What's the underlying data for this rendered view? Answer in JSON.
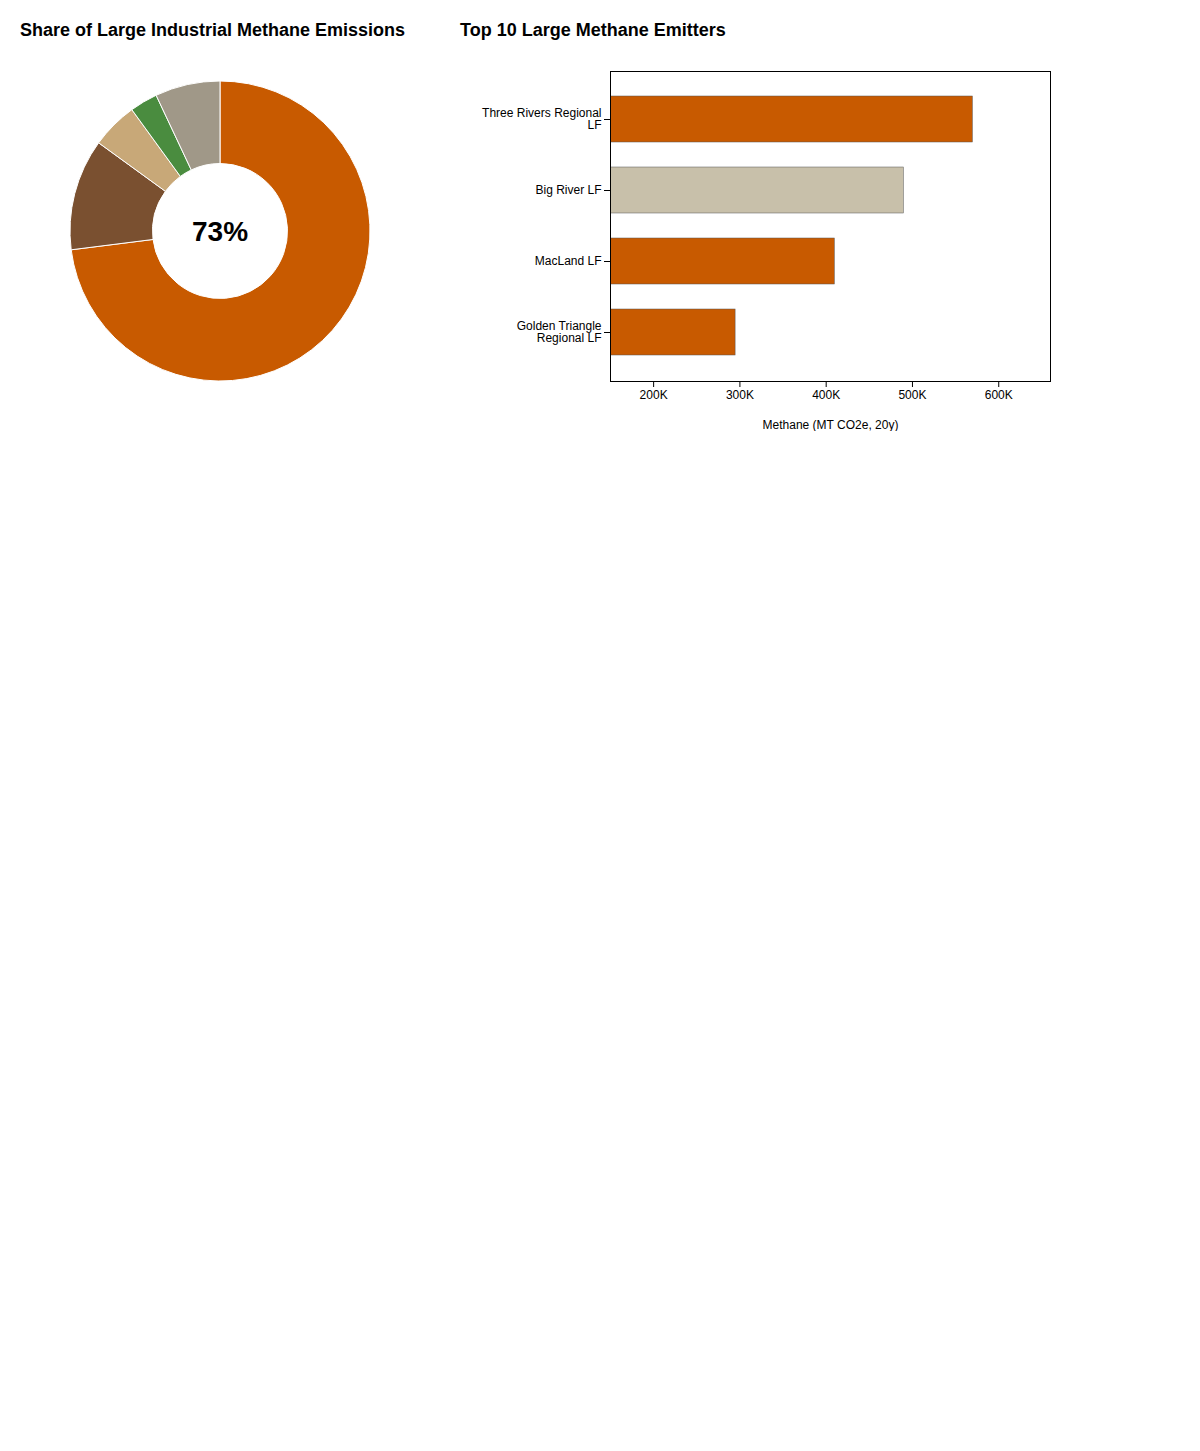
{
  "chart_data": [
    {
      "type": "pie",
      "title": "Share of Large Industrial Methane Emissions",
      "categories": [
        null,
        null,
        null,
        null,
        null
      ],
      "values": [
        73,
        12,
        5,
        3,
        7
      ],
      "colors": [
        "#c85a00",
        "#7a5030",
        "#c8a878",
        "#4a8c3f",
        "#a09888"
      ],
      "annotations": [
        "73%"
      ]
    },
    {
      "type": "bar",
      "title": "Top 10 Large Methane Emitters",
      "orientation": "horizontal",
      "categories": [
        "Three Rivers Regional\nLF",
        "Big River LF",
        "MacLand LF",
        "Golden Triangle\nRegional LF"
      ],
      "values": [
        570000,
        490000,
        410000,
        295000
      ],
      "colors": [
        "#c85a00",
        "#c8c0aa",
        "#c85a00",
        "#c85a00"
      ],
      "xlabel": "Methane (MT CO2e, 20y)",
      "xlim": [
        150000,
        660000
      ],
      "xticks": [
        {
          "value": 200000,
          "label": "200K"
        },
        {
          "value": 300000,
          "label": "300K"
        },
        {
          "value": 400000,
          "label": "400K"
        },
        {
          "value": 500000,
          "label": "500K"
        },
        {
          "value": 600000,
          "label": "600K"
        }
      ],
      "grid": false
    }
  ]
}
